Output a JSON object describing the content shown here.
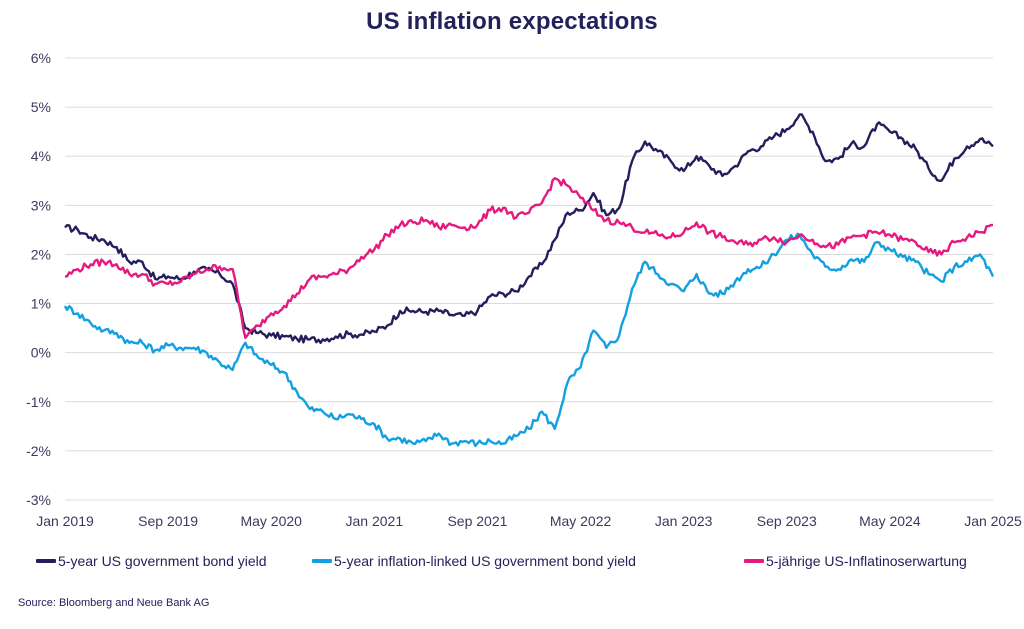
{
  "chart_data": {
    "type": "line",
    "title": "US inflation expectations",
    "xlabel": "",
    "ylabel": "",
    "ylim": [
      -3,
      6
    ],
    "yticks": [
      -3,
      -2,
      -1,
      0,
      1,
      2,
      3,
      4,
      5,
      6
    ],
    "ytick_labels": [
      "-3%",
      "-2%",
      "-1%",
      "0%",
      "1%",
      "2%",
      "3%",
      "4%",
      "5%",
      "6%"
    ],
    "xtick_labels": [
      "Jan 2019",
      "Sep 2019",
      "May 2020",
      "Jan 2021",
      "Sep 2021",
      "May 2022",
      "Jan 2023",
      "Sep 2023",
      "May 2024",
      "Jan 2025"
    ],
    "xtick_month_index": [
      0,
      8,
      16,
      24,
      32,
      40,
      48,
      56,
      64,
      72
    ],
    "x_start": "Jan 2019",
    "x_end": "Jan 2025",
    "x_frequency": "monthly",
    "grid": "horizontal",
    "legend_position": "bottom",
    "series": [
      {
        "name": "5-year US government bond yield",
        "color": "#231f5c",
        "values": [
          2.55,
          2.5,
          2.35,
          2.3,
          2.15,
          1.85,
          1.85,
          1.5,
          1.55,
          1.5,
          1.65,
          1.7,
          1.6,
          1.4,
          0.5,
          0.4,
          0.35,
          0.33,
          0.28,
          0.27,
          0.27,
          0.33,
          0.38,
          0.37,
          0.43,
          0.55,
          0.85,
          0.85,
          0.83,
          0.85,
          0.77,
          0.75,
          0.85,
          1.15,
          1.2,
          1.25,
          1.55,
          1.8,
          2.3,
          2.85,
          2.9,
          3.25,
          2.8,
          2.95,
          3.9,
          4.3,
          4.1,
          3.9,
          3.7,
          4.0,
          3.8,
          3.6,
          3.8,
          4.1,
          4.2,
          4.4,
          4.55,
          4.85,
          4.5,
          3.9,
          3.95,
          4.25,
          4.2,
          4.65,
          4.5,
          4.35,
          4.15,
          3.75,
          3.5,
          3.95,
          4.2,
          4.35,
          4.2
        ]
      },
      {
        "name": "5-year inflation-linked US government bond yield",
        "color": "#12a0e0",
        "values": [
          0.95,
          0.8,
          0.6,
          0.45,
          0.4,
          0.2,
          0.2,
          0.05,
          0.15,
          0.1,
          0.1,
          0.0,
          -0.2,
          -0.35,
          0.2,
          -0.1,
          -0.25,
          -0.4,
          -0.8,
          -1.15,
          -1.2,
          -1.35,
          -1.25,
          -1.35,
          -1.45,
          -1.75,
          -1.75,
          -1.85,
          -1.8,
          -1.65,
          -1.85,
          -1.8,
          -1.85,
          -1.8,
          -1.85,
          -1.7,
          -1.55,
          -1.2,
          -1.55,
          -0.6,
          -0.3,
          0.45,
          0.1,
          0.35,
          1.3,
          1.85,
          1.6,
          1.4,
          1.25,
          1.6,
          1.2,
          1.2,
          1.45,
          1.7,
          1.75,
          2.0,
          2.3,
          2.4,
          2.0,
          1.75,
          1.7,
          1.9,
          1.85,
          2.25,
          2.1,
          1.95,
          1.85,
          1.6,
          1.45,
          1.75,
          1.85,
          2.0,
          1.55
        ]
      },
      {
        "name": "5-jährige US-Inflatinoserwartung",
        "color": "#e5197e",
        "values": [
          1.55,
          1.7,
          1.8,
          1.85,
          1.8,
          1.6,
          1.6,
          1.4,
          1.4,
          1.45,
          1.6,
          1.7,
          1.75,
          1.7,
          0.3,
          0.55,
          0.8,
          0.95,
          1.2,
          1.5,
          1.55,
          1.6,
          1.7,
          1.95,
          2.1,
          2.4,
          2.6,
          2.65,
          2.7,
          2.55,
          2.6,
          2.55,
          2.6,
          2.9,
          2.95,
          2.75,
          2.85,
          3.05,
          3.55,
          3.4,
          3.15,
          2.9,
          2.7,
          2.65,
          2.55,
          2.45,
          2.4,
          2.35,
          2.45,
          2.65,
          2.45,
          2.35,
          2.25,
          2.2,
          2.3,
          2.35,
          2.25,
          2.4,
          2.3,
          2.15,
          2.2,
          2.35,
          2.4,
          2.45,
          2.4,
          2.3,
          2.25,
          2.05,
          2.0,
          2.25,
          2.35,
          2.45,
          2.6
        ]
      }
    ]
  },
  "source": "Source: Bloomberg and Neue Bank AG"
}
